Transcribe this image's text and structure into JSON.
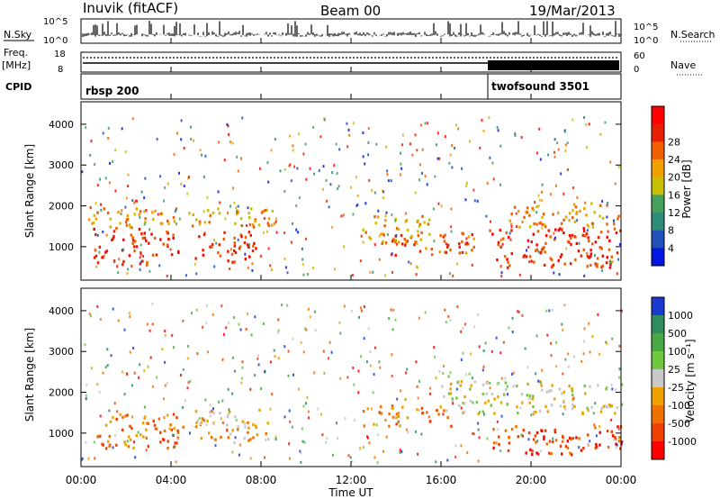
{
  "header": {
    "station": "Inuvik (fitACF)",
    "beam": "Beam 00",
    "date": "19/Mar/2013"
  },
  "noise_panel": {
    "left_label": "N.Sky",
    "left_ticks": [
      "10^5",
      "10^0"
    ],
    "right_label": "N.Search",
    "right_ticks": [
      "10^5",
      "10^0"
    ]
  },
  "freq_panel": {
    "left_label_1": "Freq.",
    "left_label_2": "[MHz]",
    "left_ticks": [
      "18",
      "8"
    ],
    "right_label": "Nave",
    "right_ticks": [
      "60",
      "0"
    ]
  },
  "cpid_panel": {
    "label": "CPID",
    "segments": [
      "rbsp 200",
      "twofsound 3501"
    ]
  },
  "colors": {
    "power_scale": [
      "#0018e0",
      "#2050b8",
      "#2e8c78",
      "#44a05a",
      "#c8c000",
      "#f0a000",
      "#f06000",
      "#e82000",
      "#ff0000"
    ],
    "velocity_scale": [
      "#1a3ad0",
      "#2e8c60",
      "#48a848",
      "#70c840",
      "#c8c8c8",
      "#f0a000",
      "#f07000",
      "#ee4000",
      "#ff0000"
    ]
  },
  "chart_data": [
    {
      "type": "heatmap",
      "title": "Power",
      "ylabel": "Slant Range [km]",
      "ylim": [
        180,
        4550
      ],
      "yticks": [
        "1000",
        "2000",
        "3000",
        "4000"
      ],
      "xlim": [
        "00:00",
        "24:00"
      ],
      "colorbar_label": "Power [dB]",
      "colorbar_ticks": [
        "4",
        "8",
        "12",
        "16",
        "20",
        "24",
        "28"
      ],
      "colorbar_range": [
        0,
        30
      ],
      "regions": [
        {
          "t": [
            0.5,
            3.0
          ],
          "r": [
            550,
            1500
          ],
          "level": 26
        },
        {
          "t": [
            3.0,
            4.5
          ],
          "r": [
            800,
            1400
          ],
          "level": 25
        },
        {
          "t": [
            5.0,
            8.0
          ],
          "r": [
            650,
            1400
          ],
          "level": 27
        },
        {
          "t": [
            0.3,
            8.6
          ],
          "r": [
            1500,
            2000
          ],
          "level": 18
        },
        {
          "t": [
            12.5,
            15.5
          ],
          "r": [
            1100,
            1800
          ],
          "level": 19
        },
        {
          "t": [
            13.5,
            17.5
          ],
          "r": [
            800,
            1400
          ],
          "level": 24
        },
        {
          "t": [
            18.0,
            24.0
          ],
          "r": [
            500,
            1500
          ],
          "level": 26
        },
        {
          "t": [
            19.0,
            24.0
          ],
          "r": [
            1500,
            2100
          ],
          "level": 18
        }
      ]
    },
    {
      "type": "heatmap",
      "title": "Velocity",
      "ylabel": "Slant Range [km]",
      "ylim": [
        180,
        4550
      ],
      "yticks": [
        "1000",
        "2000",
        "3000",
        "4000"
      ],
      "xlim": [
        "00:00",
        "24:00"
      ],
      "colorbar_label": "Velocity [m s⁻¹]",
      "colorbar_ticks": [
        "1000",
        "500",
        "100",
        "25",
        "-25",
        "-100",
        "-500",
        "-1000"
      ],
      "regions": [
        {
          "t": [
            0.5,
            4.5
          ],
          "r": [
            650,
            1500
          ],
          "level": "-300"
        },
        {
          "t": [
            5.0,
            8.5
          ],
          "r": [
            800,
            1600
          ],
          "level": "-200"
        },
        {
          "t": [
            12.5,
            16.5
          ],
          "r": [
            1200,
            1700
          ],
          "level": "-400"
        },
        {
          "t": [
            16.0,
            24.0
          ],
          "r": [
            1500,
            2300
          ],
          "level": "0"
        },
        {
          "t": [
            18.0,
            24.0
          ],
          "r": [
            500,
            1200
          ],
          "level": "-500"
        }
      ]
    }
  ],
  "x_axis": {
    "label": "Time UT",
    "ticks": [
      "00:00",
      "04:00",
      "08:00",
      "12:00",
      "16:00",
      "20:00",
      "00:00"
    ]
  }
}
